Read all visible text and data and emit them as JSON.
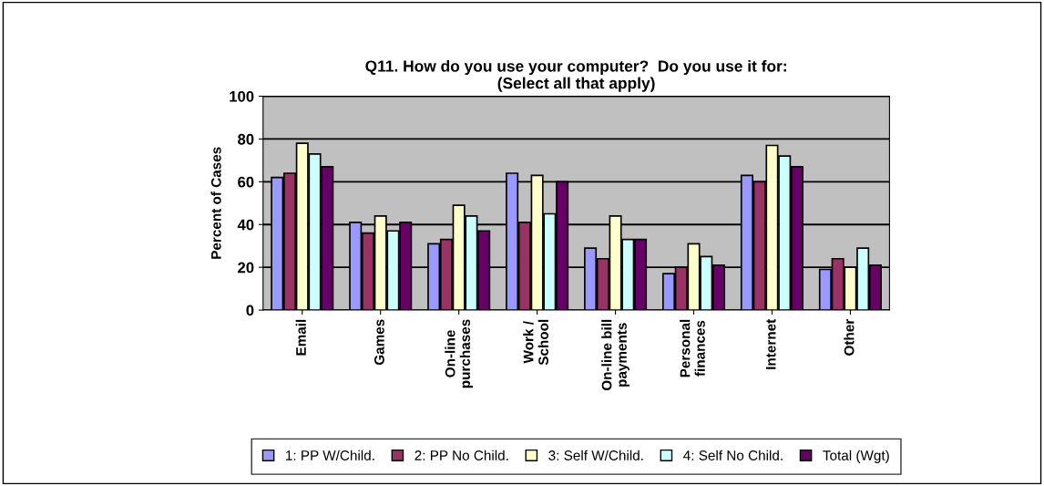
{
  "chart_data": {
    "type": "bar",
    "title": "Q11. How do you use your computer?  Do you use it for:\n(Select all that apply)",
    "ylabel": "Percent of Cases",
    "categories": [
      "Email",
      "Games",
      "On-line\npurchases",
      "Work /\nSchool",
      "On-line bill\npayments",
      "Personal\nfinances",
      "Internet",
      "Other"
    ],
    "series": [
      {
        "name": "1: PP W/Child.",
        "color": "#9999ff",
        "values": [
          62,
          41,
          31,
          64,
          29,
          17,
          63,
          19
        ]
      },
      {
        "name": "2: PP No Child.",
        "color": "#993366",
        "values": [
          64,
          36,
          33,
          41,
          24,
          20,
          60,
          24
        ]
      },
      {
        "name": "3: Self W/Child.",
        "color": "#ffffcc",
        "values": [
          78,
          44,
          49,
          63,
          44,
          31,
          77,
          20
        ]
      },
      {
        "name": "4: Self No Child.",
        "color": "#ccffff",
        "values": [
          73,
          37,
          44,
          45,
          33,
          25,
          72,
          29
        ]
      },
      {
        "name": "Total (Wgt)",
        "color": "#660066",
        "values": [
          67,
          41,
          37,
          60,
          33,
          21,
          67,
          21
        ]
      }
    ],
    "ylim": [
      0,
      100
    ],
    "yticks": [
      0,
      20,
      40,
      60,
      80,
      100
    ],
    "grid": "y",
    "legend": "bottom"
  }
}
